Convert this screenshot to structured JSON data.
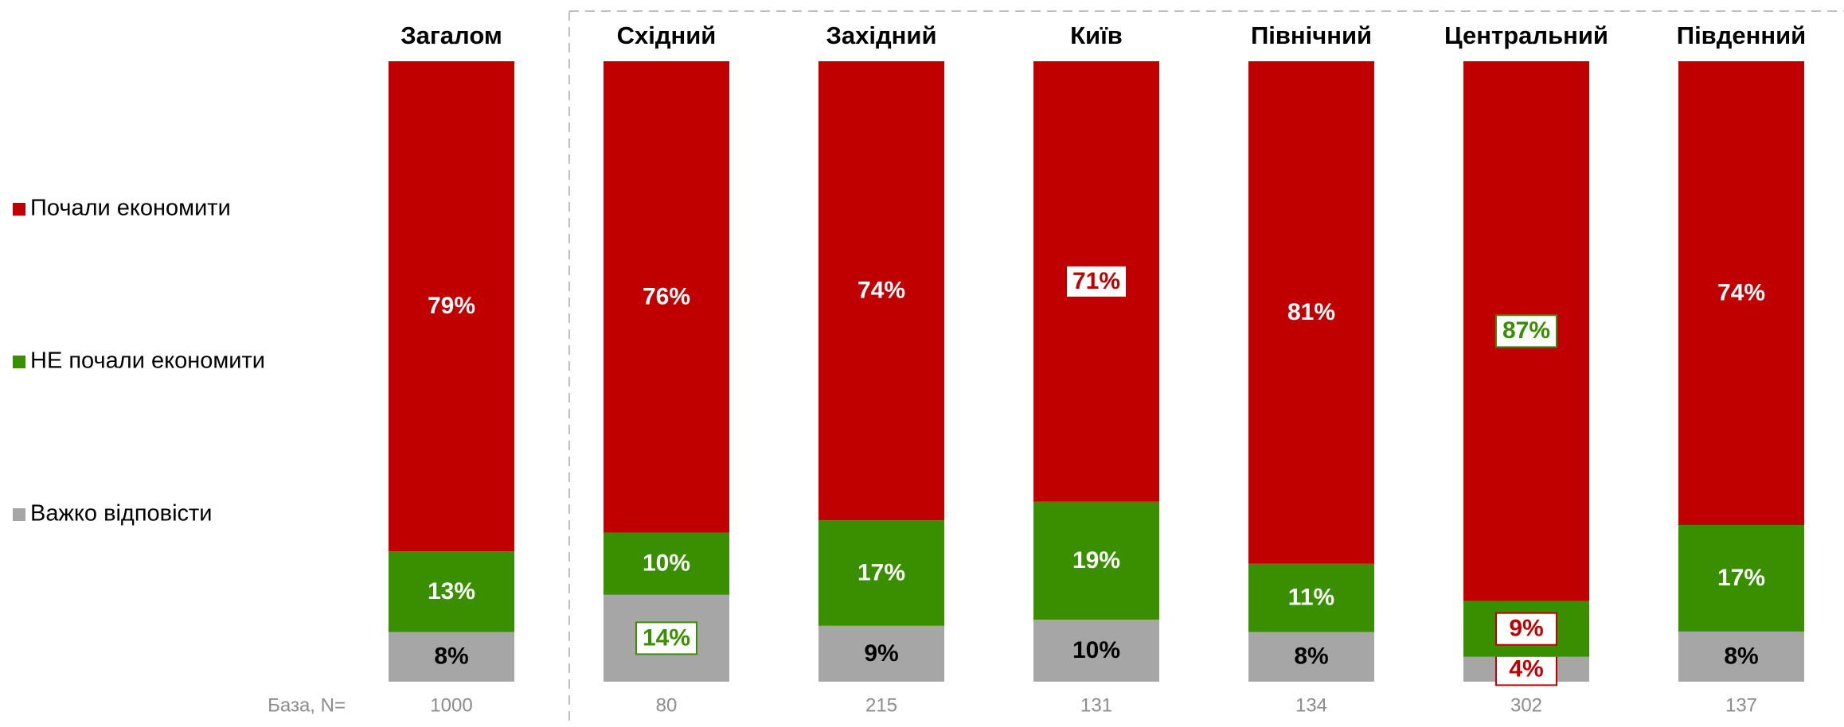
{
  "chart_data": {
    "type": "stacked_bar_100",
    "categories": [
      "Загалом",
      "Східний",
      "Західний",
      "Київ",
      "Північний",
      "Центральний",
      "Південний"
    ],
    "series": [
      {
        "name": "Почали економити",
        "color": "#c00000",
        "values": [
          79,
          76,
          74,
          71,
          81,
          87,
          74
        ],
        "value_labels": [
          "79%",
          "76%",
          "74%",
          "71%",
          "81%",
          "87%",
          "74%"
        ],
        "highlight": [
          null,
          null,
          null,
          "#c00000",
          null,
          "#3a8f00",
          null
        ]
      },
      {
        "name": "НЕ почали економити",
        "color": "#3a8f00",
        "values": [
          13,
          10,
          17,
          19,
          11,
          9,
          17
        ],
        "value_labels": [
          "13%",
          "10%",
          "17%",
          "19%",
          "11%",
          "9%",
          "17%"
        ],
        "highlight": [
          null,
          null,
          null,
          null,
          null,
          "#c00000",
          null
        ]
      },
      {
        "name": "Важко відповісти",
        "color": "#a6a6a6",
        "values": [
          8,
          14,
          9,
          10,
          8,
          4,
          8
        ],
        "value_labels": [
          "8%",
          "14%",
          "9%",
          "10%",
          "8%",
          "4%",
          "8%"
        ],
        "highlight": [
          null,
          "#3a8f00",
          null,
          null,
          null,
          "#c00000",
          null
        ]
      }
    ],
    "base_label": "База, N=",
    "base": [
      1000,
      80,
      215,
      131,
      134,
      302,
      137
    ]
  }
}
